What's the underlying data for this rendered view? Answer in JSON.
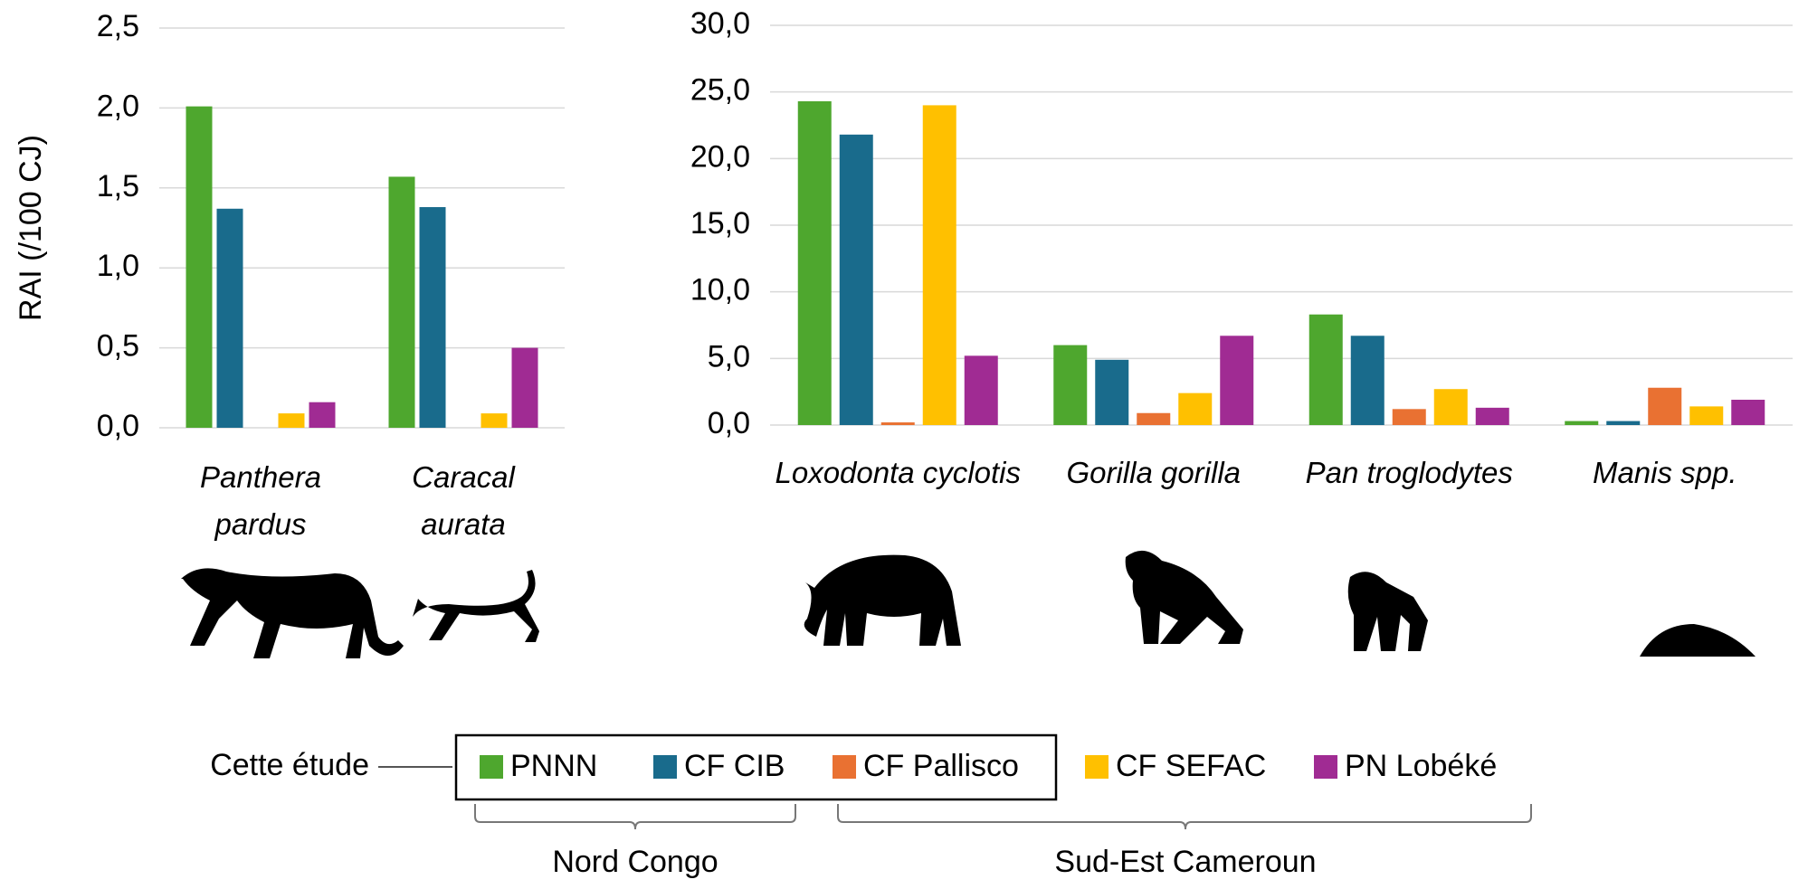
{
  "chart_data": [
    {
      "type": "bar",
      "y_label": "RAI (/100 CJ)",
      "categories": [
        "Panthera pardus",
        "Caracal aurata"
      ],
      "series": [
        {
          "name": "PNNN",
          "color": "#4ea72e",
          "values": [
            2.01,
            1.57
          ]
        },
        {
          "name": "CF CIB",
          "color": "#196b8c",
          "values": [
            1.37,
            1.38
          ]
        },
        {
          "name": "CF Pallisco",
          "color": "#e97132",
          "values": [
            null,
            null
          ]
        },
        {
          "name": "CF SEFAC",
          "color": "#ffc000",
          "values": [
            0.09,
            0.09
          ]
        },
        {
          "name": "PN Lobéké",
          "color": "#a02b93",
          "values": [
            0.16,
            0.5
          ]
        }
      ],
      "ylim": [
        0,
        2.5
      ],
      "yticks": [
        {
          "value": 0,
          "label": "0,0"
        },
        {
          "value": 0.5,
          "label": "0,5"
        },
        {
          "value": 1,
          "label": "1,0"
        },
        {
          "value": 1.5,
          "label": "1,5"
        },
        {
          "value": 2,
          "label": "2,0"
        },
        {
          "value": 2.5,
          "label": "2,5"
        }
      ],
      "grid": true
    },
    {
      "type": "bar",
      "categories": [
        "Loxodonta cyclotis",
        "Gorilla gorilla",
        "Pan troglodytes",
        "Manis spp."
      ],
      "series": [
        {
          "color": "#4ea72e",
          "values": [
            24.3,
            6.0,
            8.3,
            0.3
          ]
        },
        {
          "color": "#196b8c",
          "values": [
            21.8,
            4.9,
            6.7,
            0.3
          ]
        },
        {
          "color": "#e97132",
          "values": [
            0.2,
            0.9,
            1.2,
            2.8
          ]
        },
        {
          "color": "#ffc000",
          "values": [
            24.0,
            2.4,
            2.7,
            1.4
          ]
        },
        {
          "color": "#a02b93",
          "values": [
            5.2,
            6.7,
            1.3,
            1.9
          ]
        }
      ],
      "ylim": [
        0,
        30
      ],
      "yticks": [
        {
          "value": 0,
          "label": "0,0"
        },
        {
          "value": 5,
          "label": "5,0"
        },
        {
          "value": 10,
          "label": "10,0"
        },
        {
          "value": 15,
          "label": "15,0"
        },
        {
          "value": 20,
          "label": "20,0"
        },
        {
          "value": 25,
          "label": "25,0"
        },
        {
          "value": 30,
          "label": "30,0"
        }
      ],
      "grid": true
    }
  ],
  "legend": {
    "annotation": "Cette étude",
    "groups": [
      "Nord Congo",
      "Sud-Est Cameroun"
    ]
  }
}
